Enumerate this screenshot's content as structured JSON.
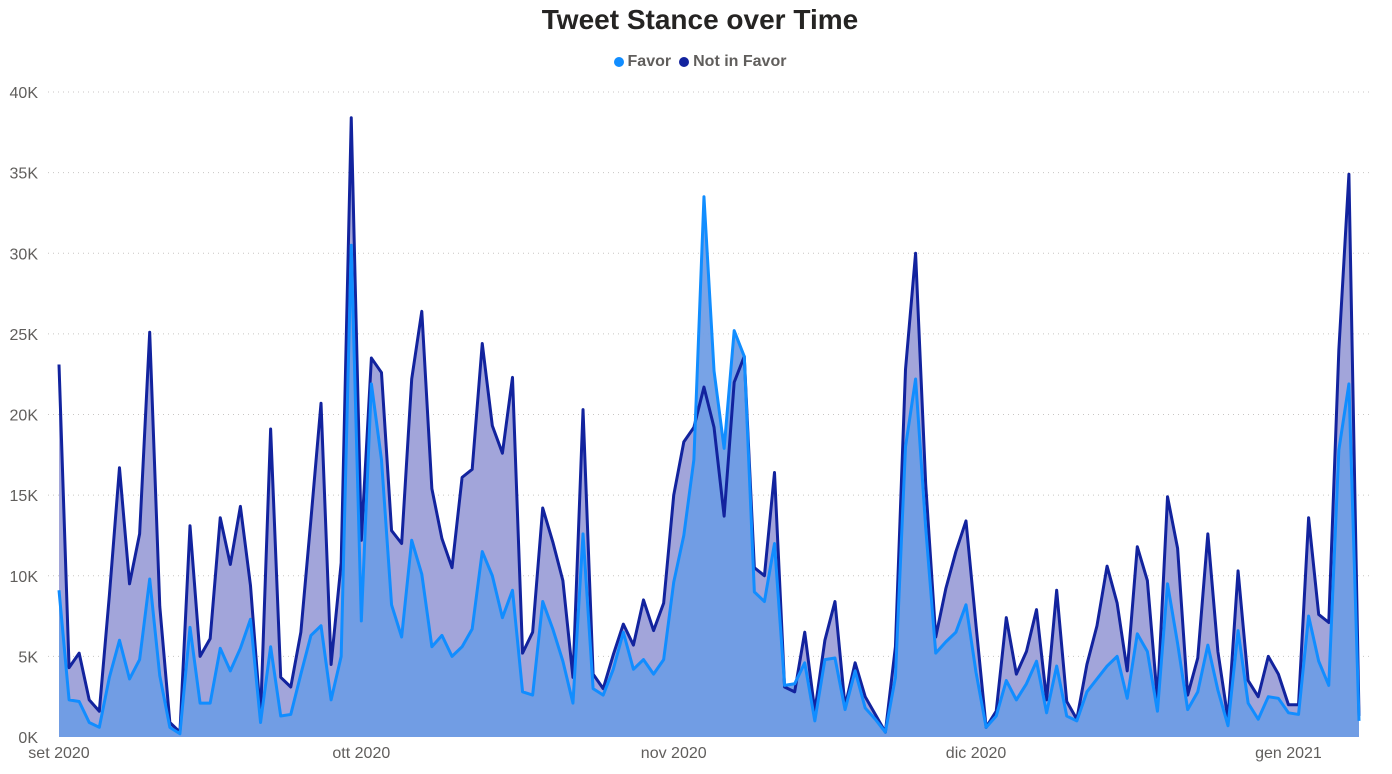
{
  "chart_data": {
    "type": "area",
    "title": "Tweet Stance over Time",
    "xlabel": "",
    "ylabel": "",
    "ylim": [
      0,
      40000
    ],
    "yticks": [
      {
        "value": 0,
        "label": "0K"
      },
      {
        "value": 5000,
        "label": "5K"
      },
      {
        "value": 10000,
        "label": "10K"
      },
      {
        "value": 15000,
        "label": "15K"
      },
      {
        "value": 20000,
        "label": "20K"
      },
      {
        "value": 25000,
        "label": "25K"
      },
      {
        "value": 30000,
        "label": "30K"
      },
      {
        "value": 35000,
        "label": "35K"
      },
      {
        "value": 40000,
        "label": "40K"
      }
    ],
    "xticks": [
      {
        "date": "2020-09-01",
        "label": "set 2020"
      },
      {
        "date": "2020-10-01",
        "label": "ott 2020"
      },
      {
        "date": "2020-11-01",
        "label": "nov 2020"
      },
      {
        "date": "2020-12-01",
        "label": "dic 2020"
      },
      {
        "date": "2021-01-01",
        "label": "gen 2021"
      }
    ],
    "grid": true,
    "legend_position": "top-center",
    "start_date": "2020-09-01",
    "series": [
      {
        "name": "Favor",
        "color": "#118DFF",
        "fill": "#9BC7F5",
        "values": [
          9100,
          2300,
          2200,
          900,
          600,
          3700,
          6000,
          3600,
          4800,
          9800,
          3800,
          600,
          200,
          6800,
          2100,
          2100,
          5500,
          4100,
          5500,
          7300,
          900,
          5600,
          1300,
          1400,
          3900,
          6300,
          6900,
          2300,
          5000,
          30500,
          7200,
          21900,
          17200,
          8200,
          6200,
          12200,
          10100,
          5600,
          6300,
          5000,
          5600,
          6700,
          11500,
          10000,
          7400,
          9100,
          2800,
          2600,
          8400,
          6700,
          4700,
          2100,
          12600,
          3000,
          2600,
          4200,
          6500,
          4200,
          4800,
          3900,
          4800,
          9600,
          12500,
          17200,
          33500,
          22700,
          17900,
          25200,
          23600,
          9000,
          8400,
          12000,
          3200,
          3300,
          4600,
          1000,
          4800,
          4900,
          1700,
          4100,
          1800,
          1100,
          300,
          3700,
          18000,
          22200,
          13000,
          5200,
          5900,
          6500,
          8200,
          4000,
          600,
          1300,
          3500,
          2300,
          3300,
          4700,
          1500,
          4400,
          1300,
          1000,
          2800,
          3600,
          4400,
          5000,
          2400,
          6400,
          5300,
          1600,
          9500,
          5800,
          1700,
          2800,
          5700,
          2900,
          700,
          6600,
          2100,
          1100,
          2500,
          2400,
          1500,
          1400,
          7500,
          4700,
          3200,
          17800,
          21900,
          1000
        ]
      },
      {
        "name": "Not in Favor",
        "color": "#12239E",
        "fill": "#A2A5DA",
        "values": [
          23100,
          4300,
          5200,
          2300,
          1600,
          8800,
          16700,
          9500,
          12600,
          25100,
          8100,
          900,
          300,
          13100,
          5000,
          6100,
          13600,
          10700,
          14300,
          9400,
          1300,
          19100,
          3700,
          3100,
          6500,
          13500,
          20700,
          4500,
          10800,
          38400,
          12200,
          23500,
          22600,
          12800,
          12000,
          22200,
          26400,
          15400,
          12300,
          10500,
          16100,
          16600,
          24400,
          19300,
          17600,
          22300,
          5200,
          6500,
          14200,
          12100,
          9700,
          3700,
          20300,
          3900,
          3000,
          5100,
          7000,
          5700,
          8500,
          6600,
          8300,
          15000,
          18300,
          19200,
          21700,
          19200,
          13700,
          22000,
          23600,
          10500,
          10000,
          16400,
          3100,
          2800,
          6500,
          1600,
          6000,
          8400,
          1900,
          4600,
          2500,
          1400,
          300,
          5600,
          22800,
          30000,
          15700,
          6200,
          9200,
          11500,
          13400,
          6900,
          600,
          1600,
          7400,
          3900,
          5300,
          7900,
          2300,
          9100,
          2200,
          1100,
          4500,
          6900,
          10600,
          8300,
          4100,
          11800,
          9700,
          2300,
          14900,
          11700,
          2600,
          4900,
          12600,
          5300,
          1100,
          10300,
          3500,
          2500,
          5000,
          3900,
          2000,
          2000,
          13600,
          7600,
          7100,
          24000,
          34900,
          1300
        ]
      }
    ]
  }
}
